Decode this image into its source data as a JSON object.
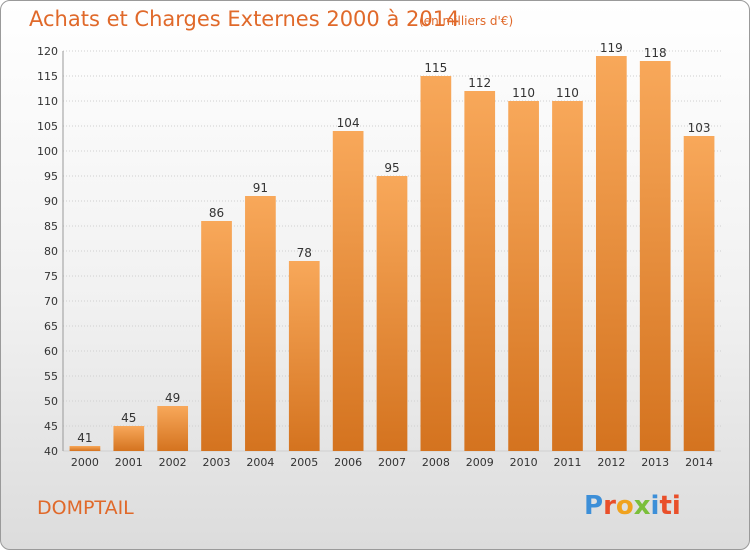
{
  "header": {
    "title": "Achats et Charges Externes 2000 à 2014",
    "unit": "(en milliers d'€)"
  },
  "footer": {
    "commune": "DOMPTAIL",
    "brand": [
      "P",
      "r",
      "o",
      "x",
      "i",
      "ti"
    ]
  },
  "colors": {
    "accent": "#e0692a",
    "bar_top": "#f8a85a",
    "bar_bottom": "#d4731f"
  },
  "chart_data": {
    "type": "bar",
    "title": "Achats et Charges Externes 2000 à 2014",
    "subtitle": "(en milliers d'€)",
    "categories": [
      "2000",
      "2001",
      "2002",
      "2003",
      "2004",
      "2005",
      "2006",
      "2007",
      "2008",
      "2009",
      "2010",
      "2011",
      "2012",
      "2013",
      "2014"
    ],
    "values": [
      41,
      45,
      49,
      86,
      91,
      78,
      104,
      95,
      115,
      112,
      110,
      110,
      119,
      118,
      103
    ],
    "ylim": [
      40,
      120
    ],
    "yticks": [
      40,
      45,
      50,
      55,
      60,
      65,
      70,
      75,
      80,
      85,
      90,
      95,
      100,
      105,
      110,
      115,
      120
    ],
    "grid": true,
    "legend": "none"
  }
}
